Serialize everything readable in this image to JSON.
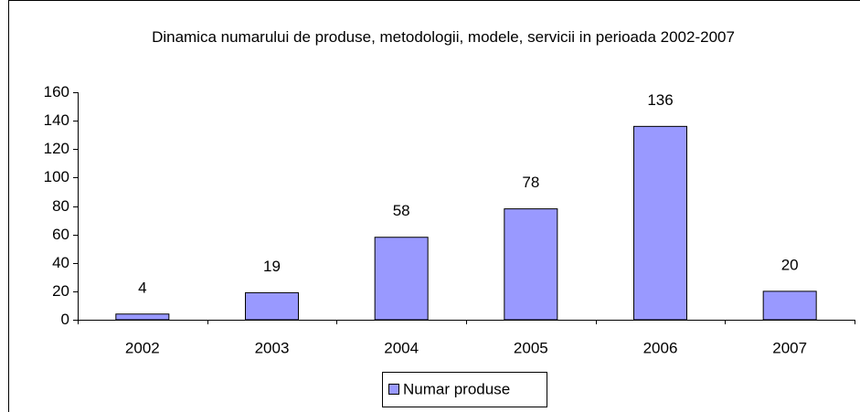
{
  "chart_data": {
    "type": "bar",
    "title": "Dinamica numarului de produse, metodologii, modele, servicii in perioada 2002-2007",
    "categories": [
      "2002",
      "2003",
      "2004",
      "2005",
      "2006",
      "2007"
    ],
    "series": [
      {
        "name": "Numar produse",
        "color": "#9999ff",
        "values": [
          4,
          19,
          58,
          78,
          136,
          20
        ]
      }
    ],
    "ylim": [
      0,
      160
    ],
    "yticks": [
      0,
      20,
      40,
      60,
      80,
      100,
      120,
      140,
      160
    ],
    "legend": "bottom"
  }
}
